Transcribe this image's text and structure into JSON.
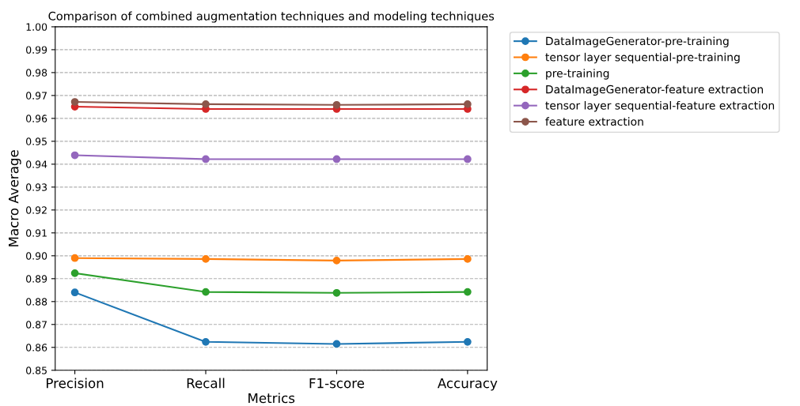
{
  "chart_data": {
    "type": "line",
    "title": "Comparison of combined augmentation techniques and modeling techniques",
    "xlabel": "Metrics",
    "ylabel": "Macro Average",
    "categories": [
      "Precision",
      "Recall",
      "F1-score",
      "Accuracy"
    ],
    "series": [
      {
        "name": "DataImageGenerator-pre-training",
        "color": "#1f77b4",
        "values": [
          0.884,
          0.8624,
          0.8615,
          0.8624
        ]
      },
      {
        "name": "tensor layer sequential-pre-training",
        "color": "#ff7f0e",
        "values": [
          0.899,
          0.8986,
          0.8979,
          0.8986
        ]
      },
      {
        "name": "pre-training",
        "color": "#2ca02c",
        "values": [
          0.8924,
          0.8842,
          0.8838,
          0.8842
        ]
      },
      {
        "name": "DataImageGenerator-feature extraction",
        "color": "#d62728",
        "values": [
          0.9651,
          0.9641,
          0.9641,
          0.9641
        ]
      },
      {
        "name": "tensor layer sequential-feature extraction",
        "color": "#9467bd",
        "values": [
          0.9439,
          0.9422,
          0.9422,
          0.9422
        ]
      },
      {
        "name": "feature extraction",
        "color": "#8c564b",
        "values": [
          0.9672,
          0.9662,
          0.9659,
          0.9662
        ]
      }
    ],
    "ylim": [
      0.85,
      1.0
    ],
    "yticks": [
      {
        "value": 0.85,
        "label": "0.85"
      },
      {
        "value": 0.86,
        "label": "0.86"
      },
      {
        "value": 0.87,
        "label": "0.87"
      },
      {
        "value": 0.88,
        "label": "0.88"
      },
      {
        "value": 0.89,
        "label": "0.89"
      },
      {
        "value": 0.9,
        "label": "0.90"
      },
      {
        "value": 0.91,
        "label": "0.91"
      },
      {
        "value": 0.92,
        "label": "0.92"
      },
      {
        "value": 0.93,
        "label": "0.93"
      },
      {
        "value": 0.94,
        "label": "0.94"
      },
      {
        "value": 0.95,
        "label": "0.95"
      },
      {
        "value": 0.96,
        "label": "0.96"
      },
      {
        "value": 0.97,
        "label": "0.97"
      },
      {
        "value": 0.98,
        "label": "0.98"
      },
      {
        "value": 0.99,
        "label": "0.99"
      },
      {
        "value": 1.0,
        "label": "1.00"
      }
    ],
    "grid": "y",
    "legend": "top right",
    "marker": "circle",
    "line_style": "solid"
  }
}
